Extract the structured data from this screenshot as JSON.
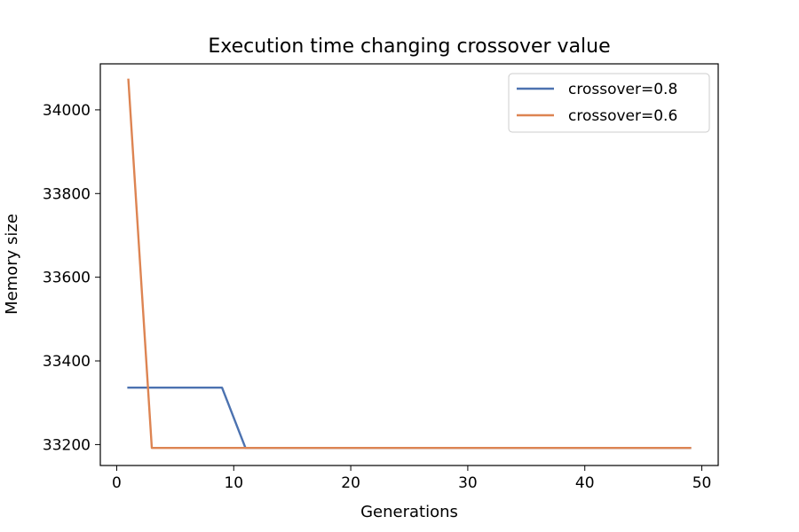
{
  "chart_data": {
    "type": "line",
    "title": "Execution time changing crossover value",
    "xlabel": "Generations",
    "ylabel": "Memory size",
    "xlim": [
      -1.4,
      51.4
    ],
    "ylim": [
      33150,
      34110
    ],
    "x_ticks": [
      0,
      10,
      20,
      30,
      40,
      50
    ],
    "y_ticks": [
      33200,
      33400,
      33600,
      33800,
      34000
    ],
    "grid": false,
    "legend": {
      "placement": "top-right"
    },
    "series": [
      {
        "name": "crossover=0.8",
        "color": "#4c72b0",
        "points": [
          [
            1,
            33336
          ],
          [
            9,
            33336
          ],
          [
            11,
            33192
          ],
          [
            49,
            33192
          ]
        ]
      },
      {
        "name": "crossover=0.6",
        "color": "#dd8452",
        "points": [
          [
            1,
            34072
          ],
          [
            3,
            33192
          ],
          [
            49,
            33192
          ]
        ]
      }
    ]
  }
}
